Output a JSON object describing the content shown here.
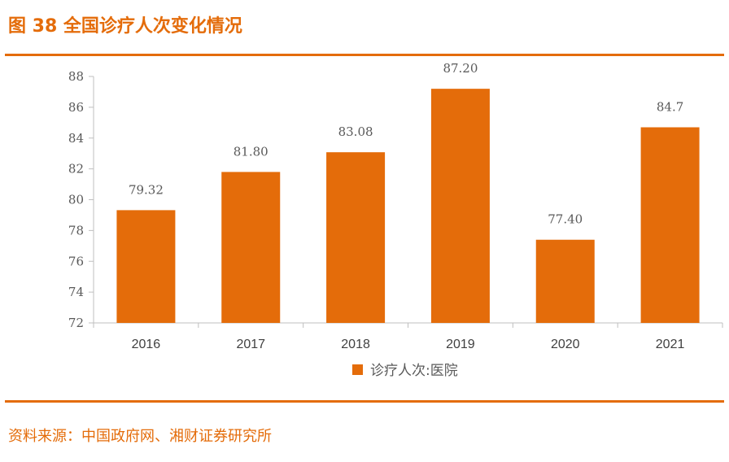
{
  "figure": {
    "title": "图 38  全国诊疗人次变化情况",
    "source": "资料来源：中国政府网、湘财证券研究所"
  },
  "colors": {
    "accent": "#E46C0A",
    "bar": "#E46C0A",
    "axis": "#BFBFBF",
    "text": "#595959"
  },
  "chart_data": {
    "type": "bar",
    "categories": [
      "2016",
      "2017",
      "2018",
      "2019",
      "2020",
      "2021"
    ],
    "series": [
      {
        "name": "诊疗人次:医院",
        "values": [
          79.32,
          81.8,
          83.08,
          87.2,
          77.4,
          84.7
        ],
        "labels": [
          "79.32",
          "81.80",
          "83.08",
          "87.20",
          "77.40",
          "84.7"
        ]
      }
    ],
    "ylim": [
      72,
      88
    ],
    "yticks": [
      "72",
      "74",
      "76",
      "78",
      "80",
      "82",
      "84",
      "86",
      "88"
    ],
    "legend": "bottom-center",
    "grid": false
  }
}
